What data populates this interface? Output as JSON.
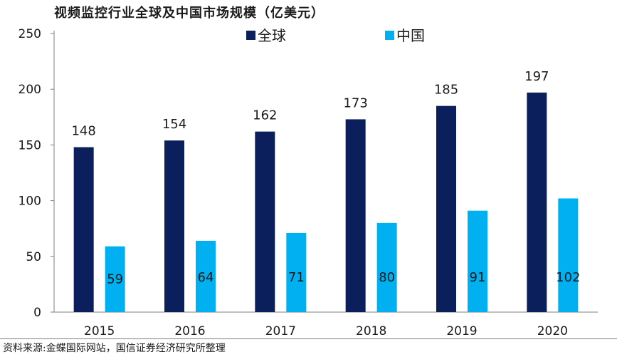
{
  "chart_data": {
    "type": "bar",
    "title": "视频监控行业全球及中国市场规模（亿美元）",
    "categories": [
      "2015",
      "2016",
      "2017",
      "2018",
      "2019",
      "2020"
    ],
    "series": [
      {
        "name": "全球",
        "values": [
          148,
          154,
          162,
          173,
          185,
          197
        ],
        "color": "#0a1f5c"
      },
      {
        "name": "中国",
        "values": [
          59,
          64,
          71,
          80,
          91,
          102
        ],
        "color": "#00b0f0"
      }
    ],
    "ylim": [
      0,
      250
    ],
    "yticks": [
      0,
      50,
      100,
      150,
      200,
      250
    ],
    "legend_position": "top",
    "grid": false
  },
  "source": "资料来源:金蝶国际网站，国信证券经济研究所整理"
}
